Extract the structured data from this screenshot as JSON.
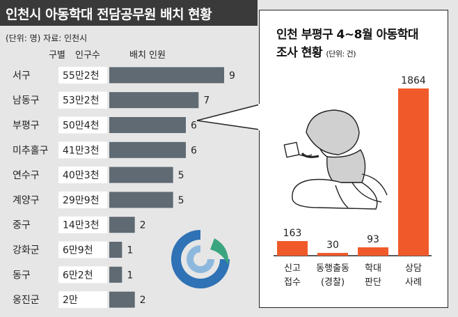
{
  "left_chart": {
    "title": "인천시 아동학대 전담공무원 배치 현황",
    "unit_note": "(단위: 명) 자료: 인천시",
    "col_headers": {
      "district": "구별",
      "population": "인구수",
      "staff": "배치 인원"
    },
    "colors": {
      "bar": "#5f6a73",
      "title_bg": "#3a3a3a",
      "background": "#e6e6e6"
    }
  },
  "right_chart": {
    "title_line1": "인천 부평구 4~8월 아동학대",
    "title_line2": "조사 현황",
    "unit_note": "(단위: 건)",
    "colors": {
      "bar": "#f05a2a"
    }
  },
  "chart_data": [
    {
      "type": "bar",
      "orientation": "horizontal",
      "title": "인천시 아동학대 전담공무원 배치 현황",
      "categories": [
        "서구",
        "남동구",
        "부평구",
        "미추홀구",
        "연수구",
        "계양구",
        "중구",
        "강화군",
        "동구",
        "옹진군"
      ],
      "population_labels": [
        "55만2천",
        "53만2천",
        "50만4천",
        "41만3천",
        "40만3천",
        "29만9천",
        "14만3천",
        "6만9천",
        "6만2천",
        "2만"
      ],
      "values": [
        9,
        7,
        6,
        6,
        5,
        5,
        2,
        1,
        1,
        2
      ],
      "xlabel": "배치 인원",
      "unit": "명",
      "xlim": [
        0,
        9
      ]
    },
    {
      "type": "bar",
      "orientation": "vertical",
      "title": "인천 부평구 4~8월 아동학대 조사 현황",
      "categories": [
        [
          "신고",
          "접수"
        ],
        [
          "동행출동",
          "(경찰)"
        ],
        [
          "학대",
          "판단"
        ],
        [
          "상담",
          "사례"
        ]
      ],
      "values": [
        163,
        30,
        93,
        1864
      ],
      "unit": "건",
      "ylim": [
        0,
        1864
      ]
    }
  ]
}
